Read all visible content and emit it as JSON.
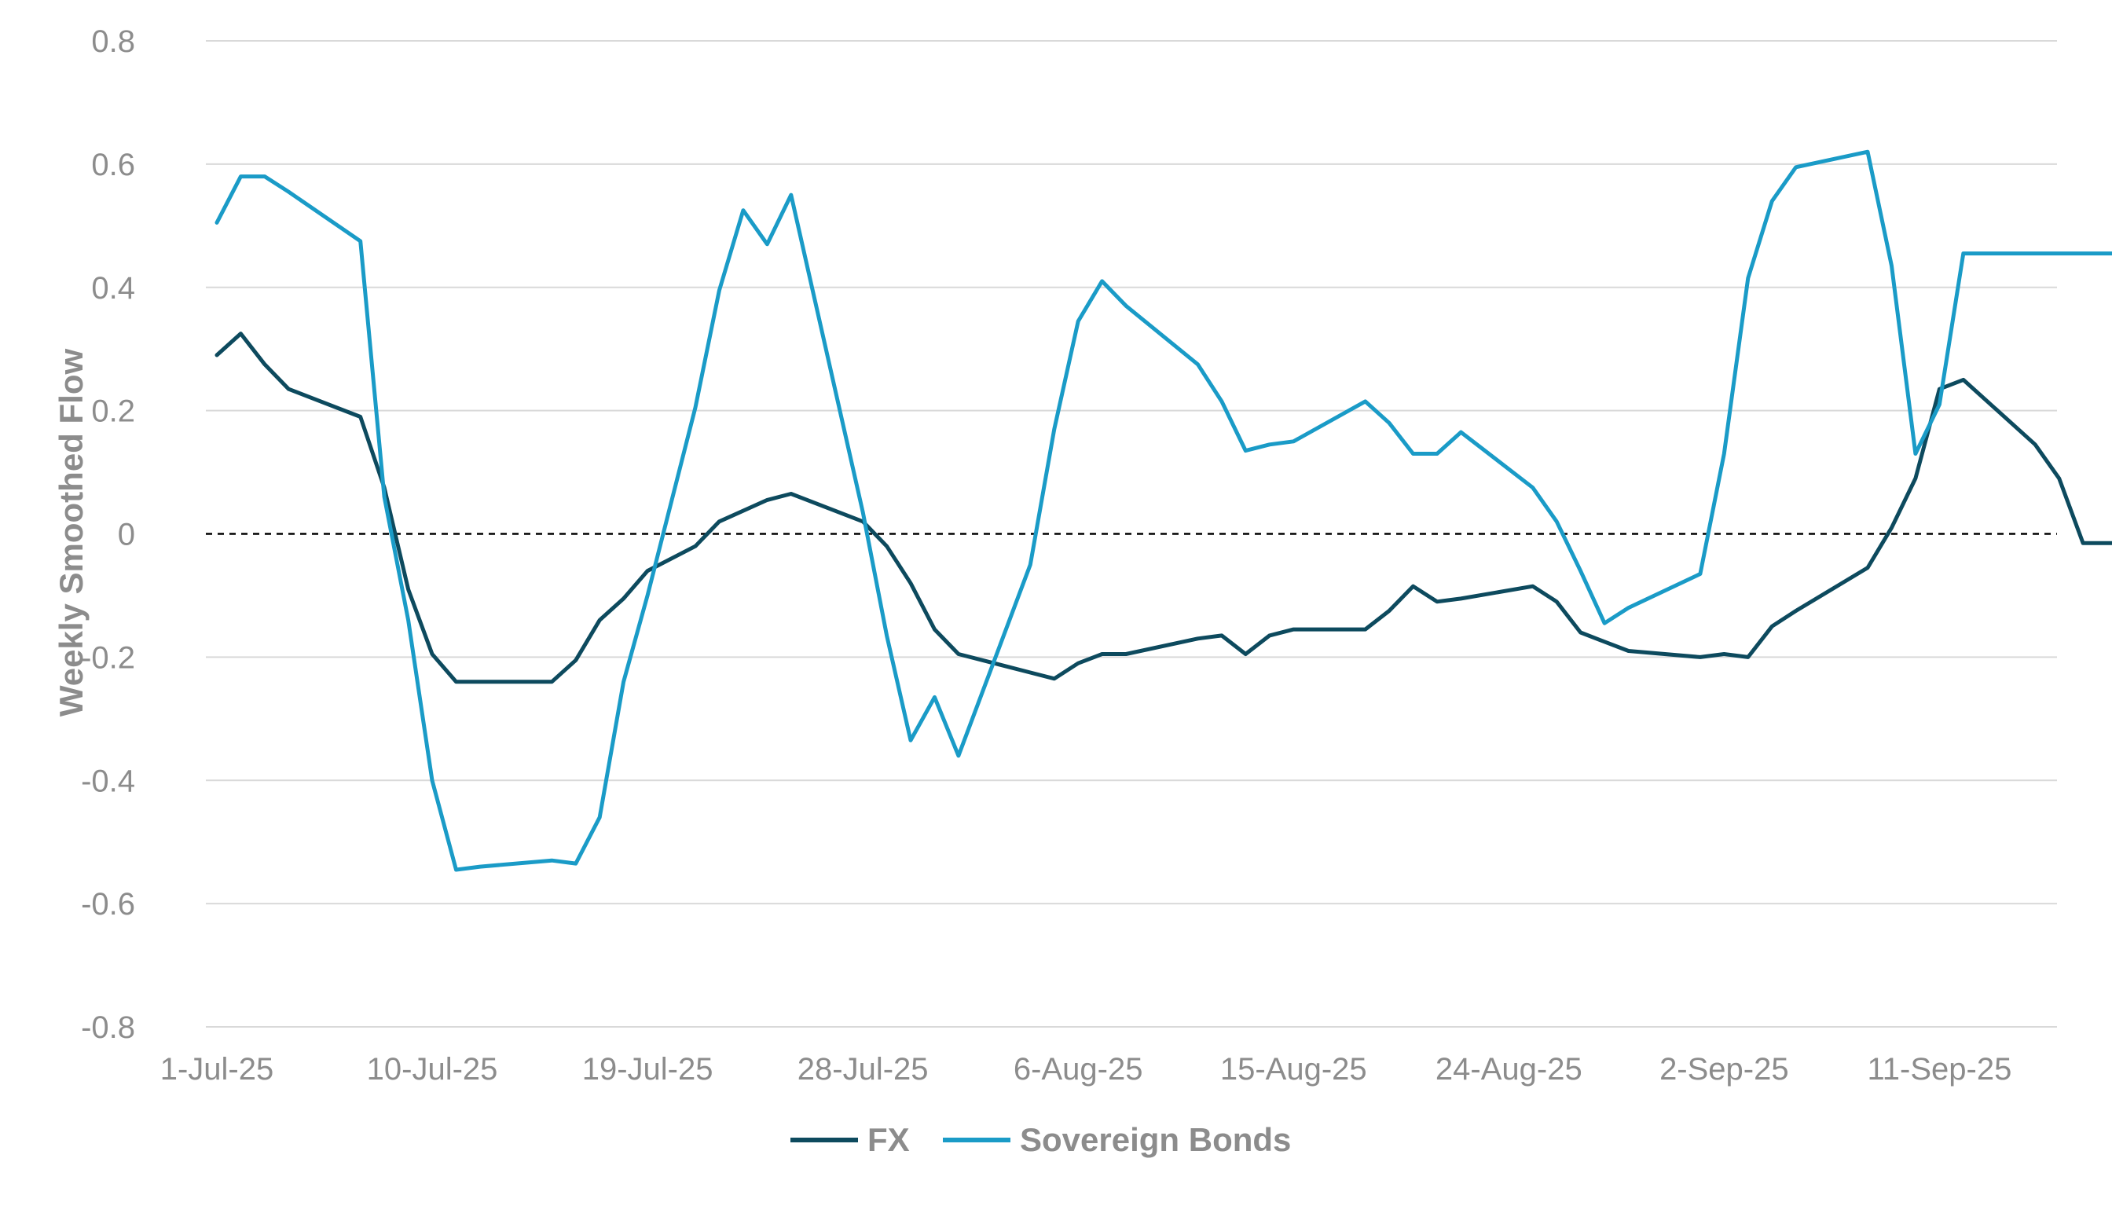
{
  "chart_data": {
    "type": "line",
    "title": "",
    "xlabel": "",
    "ylabel": "Weekly Smoothed Flow",
    "ylim": [
      -0.8,
      0.8
    ],
    "yticks": [
      0.8,
      0.6,
      0.4,
      0.2,
      0,
      -0.2,
      -0.4,
      -0.6,
      -0.8
    ],
    "ytick_labels": [
      "0.8",
      "0.6",
      "0.4",
      "0.2",
      "0",
      "-0.2",
      "-0.4",
      "-0.6",
      "-0.8"
    ],
    "xlim": [
      "2025-07-01",
      "2025-09-20"
    ],
    "xtick_labels": [
      "1-Jul-25",
      "10-Jul-25",
      "19-Jul-25",
      "28-Jul-25",
      "6-Aug-25",
      "15-Aug-25",
      "24-Aug-25",
      "2-Sep-25",
      "11-Sep-25"
    ],
    "xtick_dates": [
      "2025-07-01",
      "2025-07-10",
      "2025-07-19",
      "2025-07-28",
      "2025-08-06",
      "2025-08-15",
      "2025-08-24",
      "2025-09-02",
      "2025-09-11"
    ],
    "grid": true,
    "reference_line": {
      "y": 0,
      "style": "dashed",
      "color": "#000000"
    },
    "legend_position": "bottom-center",
    "series": [
      {
        "name": "FX",
        "color": "#0d4a5e",
        "x": [
          "2025-07-01",
          "2025-07-02",
          "2025-07-03",
          "2025-07-04",
          "2025-07-07",
          "2025-07-08",
          "2025-07-09",
          "2025-07-10",
          "2025-07-11",
          "2025-07-12",
          "2025-07-15",
          "2025-07-16",
          "2025-07-17",
          "2025-07-18",
          "2025-07-19",
          "2025-07-21",
          "2025-07-22",
          "2025-07-24",
          "2025-07-25",
          "2025-07-28",
          "2025-07-29",
          "2025-07-30",
          "2025-07-31",
          "2025-08-01",
          "2025-08-04",
          "2025-08-05",
          "2025-08-06",
          "2025-08-07",
          "2025-08-08",
          "2025-08-11",
          "2025-08-12",
          "2025-08-13",
          "2025-08-14",
          "2025-08-15",
          "2025-08-18",
          "2025-08-19",
          "2025-08-20",
          "2025-08-21",
          "2025-08-22",
          "2025-08-25",
          "2025-08-26",
          "2025-08-27",
          "2025-08-28",
          "2025-08-29",
          "2025-09-01",
          "2025-09-02",
          "2025-09-03",
          "2025-09-04",
          "2025-09-05",
          "2025-09-08",
          "2025-09-09",
          "2025-09-10",
          "2025-09-11",
          "2025-09-12",
          "2025-09-15",
          "2025-09-16",
          "2025-09-17",
          "2025-09-18",
          "2025-09-19"
        ],
        "y": [
          0.29,
          0.325,
          0.275,
          0.235,
          0.19,
          0.075,
          -0.09,
          -0.195,
          -0.24,
          -0.24,
          -0.24,
          -0.205,
          -0.14,
          -0.105,
          -0.06,
          -0.02,
          0.02,
          0.055,
          0.065,
          0.02,
          -0.02,
          -0.08,
          -0.155,
          -0.195,
          -0.225,
          -0.235,
          -0.21,
          -0.195,
          -0.195,
          -0.17,
          -0.165,
          -0.195,
          -0.165,
          -0.155,
          -0.155,
          -0.125,
          -0.085,
          -0.11,
          -0.105,
          -0.085,
          -0.11,
          -0.16,
          -0.175,
          -0.19,
          -0.2,
          -0.195,
          -0.2,
          -0.15,
          -0.125,
          -0.055,
          0.01,
          0.09,
          0.235,
          0.25,
          0.145,
          0.09,
          -0.015,
          -0.015,
          -0.015
        ]
      },
      {
        "name": "Sovereign Bonds",
        "color": "#1a9bc7",
        "x": [
          "2025-07-01",
          "2025-07-02",
          "2025-07-03",
          "2025-07-04",
          "2025-07-07",
          "2025-07-08",
          "2025-07-09",
          "2025-07-10",
          "2025-07-11",
          "2025-07-12",
          "2025-07-15",
          "2025-07-16",
          "2025-07-17",
          "2025-07-18",
          "2025-07-19",
          "2025-07-21",
          "2025-07-22",
          "2025-07-23",
          "2025-07-24",
          "2025-07-25",
          "2025-07-28",
          "2025-07-29",
          "2025-07-30",
          "2025-07-31",
          "2025-08-01",
          "2025-08-04",
          "2025-08-05",
          "2025-08-06",
          "2025-08-07",
          "2025-08-08",
          "2025-08-11",
          "2025-08-12",
          "2025-08-13",
          "2025-08-14",
          "2025-08-15",
          "2025-08-18",
          "2025-08-19",
          "2025-08-20",
          "2025-08-21",
          "2025-08-22",
          "2025-08-25",
          "2025-08-26",
          "2025-08-27",
          "2025-08-28",
          "2025-08-29",
          "2025-09-01",
          "2025-09-02",
          "2025-09-03",
          "2025-09-04",
          "2025-09-05",
          "2025-09-08",
          "2025-09-09",
          "2025-09-10",
          "2025-09-11",
          "2025-09-12",
          "2025-09-15",
          "2025-09-16",
          "2025-09-17",
          "2025-09-18",
          "2025-09-19"
        ],
        "y": [
          0.505,
          0.58,
          0.58,
          0.555,
          0.475,
          0.06,
          -0.14,
          -0.4,
          -0.545,
          -0.54,
          -0.53,
          -0.535,
          -0.46,
          -0.24,
          -0.1,
          0.205,
          0.395,
          0.525,
          0.47,
          0.55,
          0.035,
          -0.165,
          -0.335,
          -0.265,
          -0.36,
          -0.05,
          0.17,
          0.345,
          0.41,
          0.37,
          0.275,
          0.215,
          0.135,
          0.145,
          0.15,
          0.215,
          0.18,
          0.13,
          0.13,
          0.165,
          0.075,
          0.02,
          -0.06,
          -0.145,
          -0.12,
          -0.065,
          0.13,
          0.415,
          0.54,
          0.595,
          0.62,
          0.435,
          0.13,
          0.21,
          0.455,
          0.455,
          0.455,
          0.455,
          0.455,
          0.455
        ]
      }
    ]
  }
}
